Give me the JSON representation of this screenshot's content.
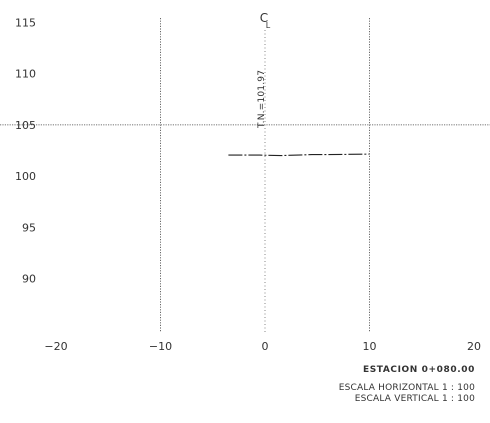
{
  "chart_data": {
    "type": "line",
    "x_ticks": [
      -20,
      -10,
      0,
      10,
      20
    ],
    "y_ticks": [
      115,
      110,
      105,
      100,
      95,
      90
    ],
    "xlim": [
      -20,
      20
    ],
    "ylim": [
      85,
      116
    ],
    "grid": false,
    "reference_lines": {
      "vertical_x": [
        -10,
        10
      ],
      "horizontal_y": [
        105
      ]
    },
    "centerline_x": 0,
    "centerline_symbol": "CL",
    "ground_elevation_label": "T.N.=101.97",
    "series": [
      {
        "x": [
          -3.5,
          -0.5,
          1.5,
          4.5,
          6.0,
          10.0
        ],
        "y": [
          102.05,
          102.05,
          102.0,
          102.1,
          102.1,
          102.15
        ]
      }
    ]
  },
  "station_label": "ESTACION 0+080.00",
  "scale_horizontal": "ESCALA HORIZONTAL 1 : 100",
  "scale_vertical": "ESCALA VERTICAL 1 : 100"
}
